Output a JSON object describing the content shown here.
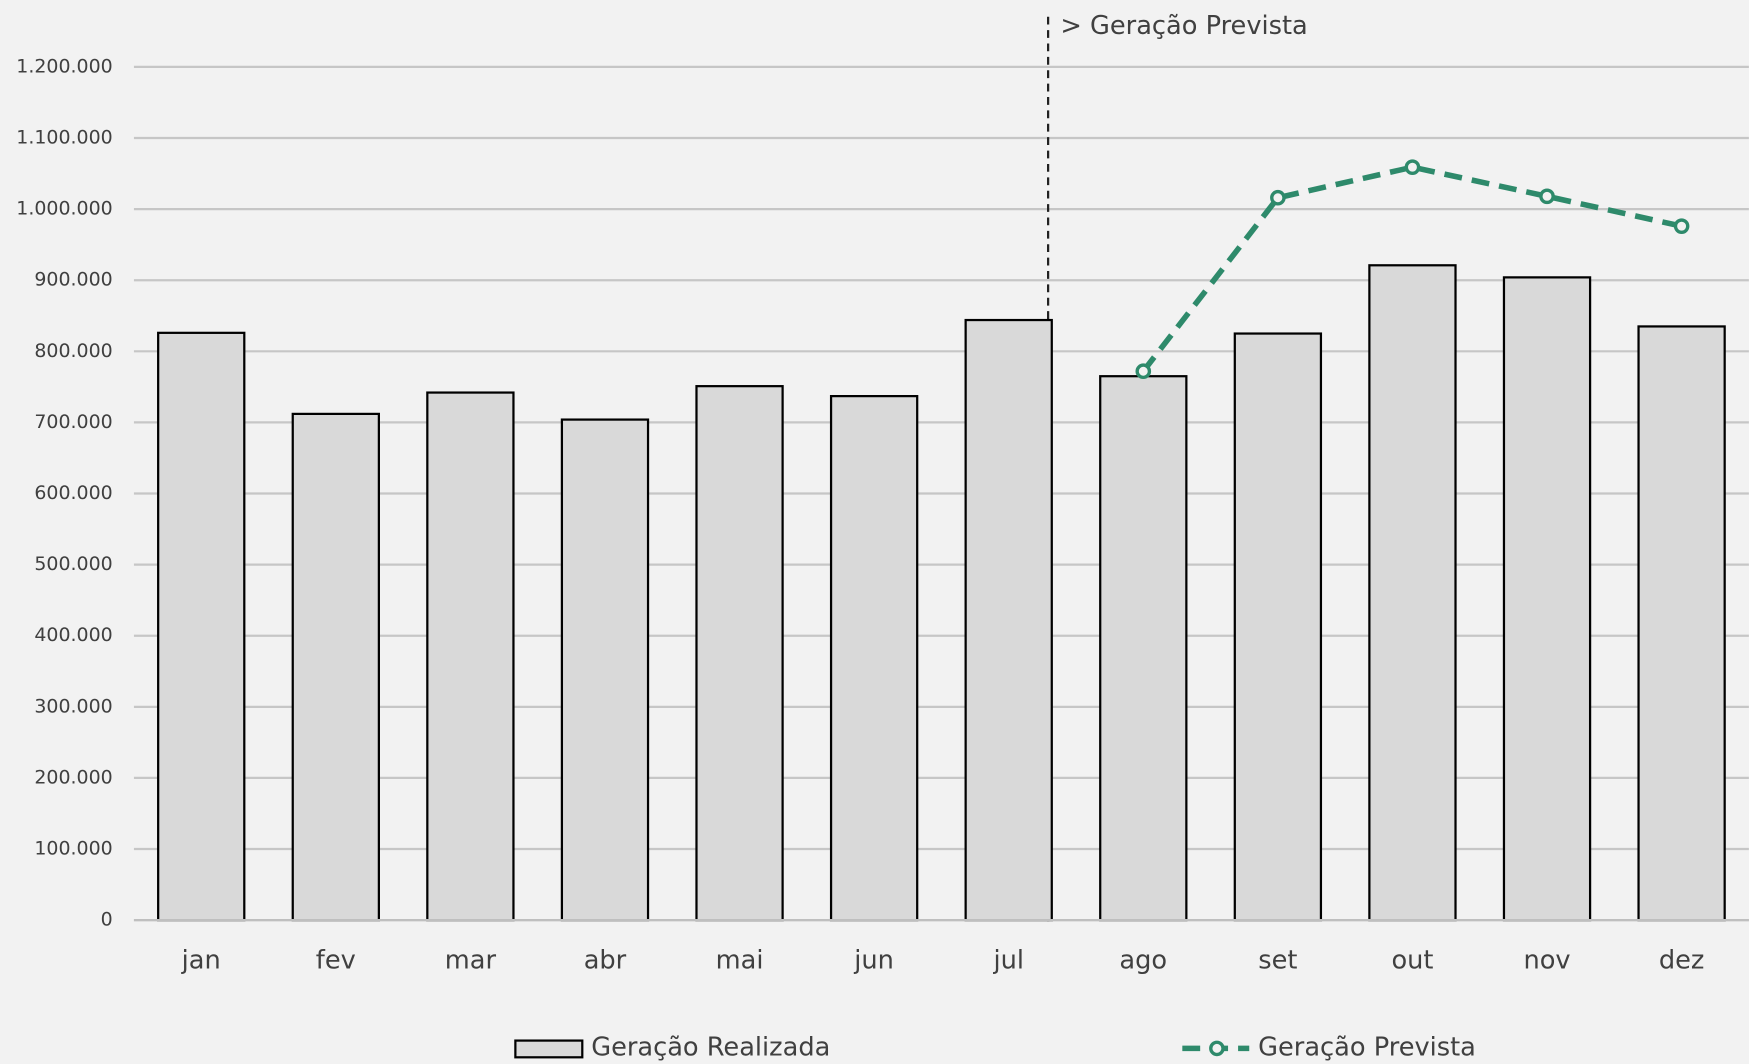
{
  "chart_data": {
    "type": "bar",
    "annotation": "> Geração Prevista",
    "categories": [
      "jan",
      "fev",
      "mar",
      "abr",
      "mai",
      "jun",
      "jul",
      "ago",
      "set",
      "out",
      "nov",
      "dez"
    ],
    "series": [
      {
        "name": "Geração Realizada",
        "type": "bar",
        "color": "#d9d9d9",
        "values": [
          826000,
          712000,
          742000,
          704000,
          751000,
          737000,
          844000,
          765000,
          825000,
          921000,
          904000,
          835000
        ]
      },
      {
        "name": "Geração Prevista",
        "type": "line",
        "color": "#2e8a6b",
        "values": [
          null,
          null,
          null,
          null,
          null,
          null,
          null,
          772000,
          1016000,
          1059000,
          1018000,
          976000
        ]
      }
    ],
    "ylim": [
      0,
      1200000
    ],
    "yticks": [
      0,
      {
        "value": 100000,
        "label": "100.000"
      },
      {
        "value": 200000,
        "label": "200.000"
      },
      {
        "value": 300000,
        "label": "300.000"
      },
      {
        "value": 400000,
        "label": "400.000"
      },
      {
        "value": 500000,
        "label": "500.000"
      },
      {
        "value": 600000,
        "label": "600.000"
      },
      {
        "value": 700000,
        "label": "700.000"
      },
      {
        "value": 800000,
        "label": "800.000"
      },
      {
        "value": 900000,
        "label": "900.000"
      },
      {
        "value": 1000000,
        "label": "1.000.000"
      },
      {
        "value": 1100000,
        "label": "1.100.000"
      },
      {
        "value": 1200000,
        "label": "1.200.000"
      }
    ],
    "grid": true,
    "legend": "bottom"
  }
}
